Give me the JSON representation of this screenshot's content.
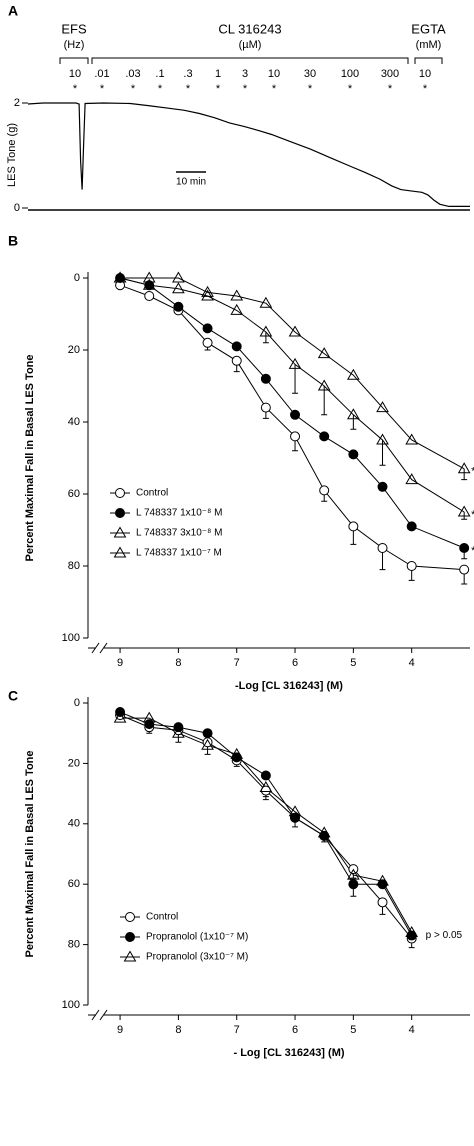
{
  "chart_data": [
    {
      "type": "trace",
      "panel": "A",
      "ylabel": "LES Tone (g)",
      "groups": [
        {
          "name": "EFS",
          "unit": "(Hz)"
        },
        {
          "name": "CL 316243",
          "unit": "(µM)"
        },
        {
          "name": "EGTA",
          "unit": "(mM)"
        }
      ],
      "doses": [
        "10",
        ".01",
        ".03",
        ".1",
        ".3",
        "1",
        "3",
        "10",
        "30",
        "100",
        "300",
        "10"
      ],
      "significance": [
        "*",
        "*",
        "*",
        "*",
        "*",
        "*",
        "*",
        "*",
        "*",
        "*",
        "*",
        "*"
      ],
      "x": [
        0,
        5,
        16,
        17,
        17.5,
        18,
        18.5,
        19,
        25,
        34,
        40,
        47,
        52,
        57,
        62,
        67,
        72,
        77,
        81,
        87,
        94,
        100,
        107,
        112,
        117,
        121,
        124,
        128,
        131,
        133,
        135,
        137,
        140,
        147
      ],
      "values": [
        1.98,
        2.0,
        2.0,
        1.98,
        0.9,
        0.35,
        1.2,
        1.99,
        2.0,
        1.99,
        1.95,
        1.9,
        1.86,
        1.8,
        1.72,
        1.62,
        1.55,
        1.47,
        1.4,
        1.27,
        1.12,
        0.97,
        0.8,
        0.68,
        0.55,
        0.42,
        0.35,
        0.32,
        0.3,
        0.25,
        0.15,
        0.07,
        0.03,
        0.03
      ],
      "color": "#000000",
      "xlim": [
        0,
        147
      ],
      "ylim": [
        0,
        2
      ],
      "yticks": [
        0,
        2
      ],
      "scale_bar": {
        "label": "10 min",
        "minutes": 10
      }
    },
    {
      "type": "line",
      "panel": "B",
      "xlabel": "-Log [CL 316243] (M)",
      "ylabel": "Percent Maximal Fall in Basal LES Tone",
      "x": [
        9,
        8.5,
        8,
        7.5,
        7,
        6.5,
        6,
        5.5,
        5,
        4.5,
        4,
        3.1
      ],
      "xlim": [
        9.55,
        3.0
      ],
      "xticks": [
        9,
        8,
        7,
        6,
        5,
        4
      ],
      "ylim": [
        0,
        100
      ],
      "yticks": [
        0,
        20,
        40,
        60,
        80,
        100
      ],
      "y_inverted": true,
      "series": [
        {
          "name": "Control",
          "color": "#000000",
          "marker": "open-circle",
          "values": [
            2,
            5,
            9,
            18,
            23,
            36,
            44,
            59,
            69,
            75,
            80,
            81
          ],
          "errors": [
            null,
            null,
            1,
            2,
            3,
            3,
            4,
            3,
            5,
            6,
            4,
            4
          ]
        },
        {
          "name": "L 748337 1x10⁻⁸ M",
          "color": "#000000",
          "marker": "filled-circle",
          "values": [
            0,
            2,
            8,
            14,
            19,
            28,
            38,
            44,
            49,
            58,
            69,
            75
          ],
          "errors": [
            null,
            null,
            null,
            null,
            null,
            null,
            null,
            null,
            null,
            null,
            null,
            3
          ],
          "end_label": "*"
        },
        {
          "name": "L 748337 3x10⁻⁸ M",
          "color": "#000000",
          "marker": "open-triangle",
          "values": [
            0,
            2,
            3,
            5,
            9,
            15,
            24,
            30,
            38,
            45,
            56,
            65
          ],
          "errors": [
            null,
            null,
            null,
            null,
            null,
            3,
            8,
            8,
            4,
            7,
            null,
            2
          ],
          "end_label": "*"
        },
        {
          "name": "L 748337 1x10⁻⁷ M",
          "color": "#000000",
          "marker": "filled-triangle",
          "values": [
            0,
            0,
            0,
            4,
            5,
            7,
            15,
            21,
            27,
            36,
            45,
            53
          ],
          "errors": [
            null,
            null,
            null,
            null,
            null,
            null,
            null,
            null,
            null,
            null,
            null,
            3
          ],
          "end_label": "*"
        }
      ]
    },
    {
      "type": "line",
      "panel": "C",
      "xlabel": "- Log [CL 316243] (M)",
      "ylabel": "Percent Maximal Fall in Basal LES Tone",
      "x": [
        9,
        8.5,
        8,
        7.5,
        7,
        6.5,
        6,
        5.5,
        5,
        4.5,
        4
      ],
      "xlim": [
        9.55,
        3.0
      ],
      "xticks": [
        9,
        8,
        7,
        6,
        5,
        4
      ],
      "ylim": [
        0,
        100
      ],
      "yticks": [
        0,
        20,
        40,
        60,
        80,
        100
      ],
      "y_inverted": true,
      "note": "p > 0.05",
      "series": [
        {
          "name": "Control",
          "color": "#000000",
          "marker": "open-circle",
          "values": [
            4,
            8,
            9,
            13,
            19,
            29,
            38,
            44,
            55,
            66,
            78
          ],
          "errors": [
            1,
            2,
            4,
            4,
            2,
            3,
            3,
            2,
            3,
            4,
            3
          ]
        },
        {
          "name": "Propranolol (1x10⁻⁷ M)",
          "color": "#000000",
          "marker": "filled-circle",
          "values": [
            3,
            7,
            8,
            10,
            18,
            24,
            38,
            44,
            60,
            60,
            77
          ],
          "errors": [
            null,
            null,
            null,
            null,
            null,
            null,
            null,
            null,
            4,
            null,
            null
          ]
        },
        {
          "name": "Propranolol (3x10⁻⁷ M)",
          "color": "#000000",
          "marker": "open-triangle",
          "values": [
            5,
            5,
            10,
            14,
            17,
            28,
            36,
            43,
            57,
            59,
            76
          ],
          "errors": [
            null,
            null,
            null,
            null,
            null,
            3,
            null,
            null,
            null,
            null,
            null
          ]
        }
      ]
    }
  ]
}
